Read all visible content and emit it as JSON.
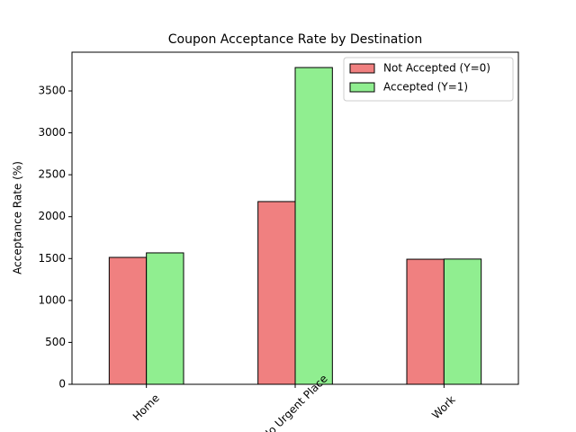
{
  "chart_data": {
    "type": "bar",
    "title": "Coupon Acceptance Rate by Destination",
    "y_label": "Acceptance Rate (%)",
    "categories": [
      "Home",
      "No Urgent Place",
      "Work"
    ],
    "series": [
      {
        "name": "Not Accepted (Y=0)",
        "color": "#f08080",
        "values": [
          1514,
          2180,
          1492
        ]
      },
      {
        "name": "Accepted (Y=1)",
        "color": "#90ee90",
        "values": [
          1568,
          3779,
          1494
        ]
      }
    ],
    "ylim": [
      0,
      3962
    ],
    "yticks": [
      0,
      500,
      1000,
      1500,
      2000,
      2500,
      3000,
      3500
    ],
    "legend": "upper right",
    "grid": false
  }
}
